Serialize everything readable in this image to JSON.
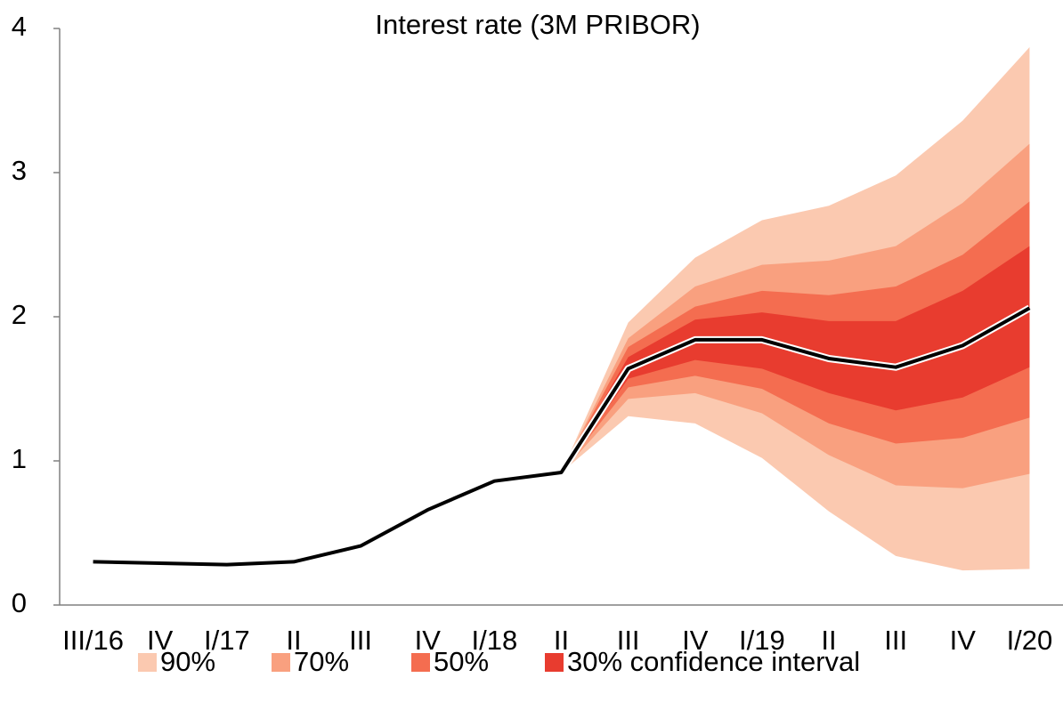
{
  "chart_data": {
    "type": "fan",
    "title": "Interest rate (3M PRIBOR)",
    "categories": [
      "III/16",
      "IV",
      "I/17",
      "II",
      "III",
      "IV",
      "I/18",
      "II",
      "III",
      "IV",
      "I/19",
      "II",
      "III",
      "IV",
      "I/20"
    ],
    "ylim": [
      0,
      4
    ],
    "yticks": [
      0,
      1,
      2,
      3,
      4
    ],
    "grid": false,
    "line": {
      "color": "#000000",
      "values": [
        0.3,
        0.29,
        0.28,
        0.3,
        0.41,
        0.66,
        0.86,
        0.92,
        1.64,
        1.84,
        1.84,
        1.71,
        1.65,
        1.8,
        2.06
      ]
    },
    "series": [
      {
        "name": "90%",
        "color": "#fbc9b0",
        "upper": [
          null,
          null,
          null,
          null,
          null,
          null,
          null,
          0.92,
          1.96,
          2.41,
          2.67,
          2.77,
          2.98,
          3.36,
          3.87
        ],
        "lower": [
          null,
          null,
          null,
          null,
          null,
          null,
          null,
          0.92,
          1.31,
          1.26,
          1.02,
          0.65,
          0.34,
          0.24,
          0.25
        ]
      },
      {
        "name": "70%",
        "color": "#f9a07f",
        "upper": [
          null,
          null,
          null,
          null,
          null,
          null,
          null,
          0.92,
          1.85,
          2.21,
          2.36,
          2.39,
          2.49,
          2.79,
          3.2
        ],
        "lower": [
          null,
          null,
          null,
          null,
          null,
          null,
          null,
          0.92,
          1.43,
          1.47,
          1.33,
          1.04,
          0.83,
          0.81,
          0.91
        ]
      },
      {
        "name": "50%",
        "color": "#f46d50",
        "upper": [
          null,
          null,
          null,
          null,
          null,
          null,
          null,
          0.92,
          1.79,
          2.07,
          2.18,
          2.15,
          2.21,
          2.43,
          2.8
        ],
        "lower": [
          null,
          null,
          null,
          null,
          null,
          null,
          null,
          0.92,
          1.51,
          1.59,
          1.5,
          1.26,
          1.12,
          1.16,
          1.3
        ]
      },
      {
        "name": "30% confidence interval",
        "color": "#e83c2f",
        "upper": [
          null,
          null,
          null,
          null,
          null,
          null,
          null,
          0.92,
          1.72,
          1.98,
          2.03,
          1.97,
          1.97,
          2.18,
          2.49
        ],
        "lower": [
          null,
          null,
          null,
          null,
          null,
          null,
          null,
          0.92,
          1.57,
          1.7,
          1.64,
          1.47,
          1.35,
          1.44,
          1.65
        ]
      }
    ]
  }
}
